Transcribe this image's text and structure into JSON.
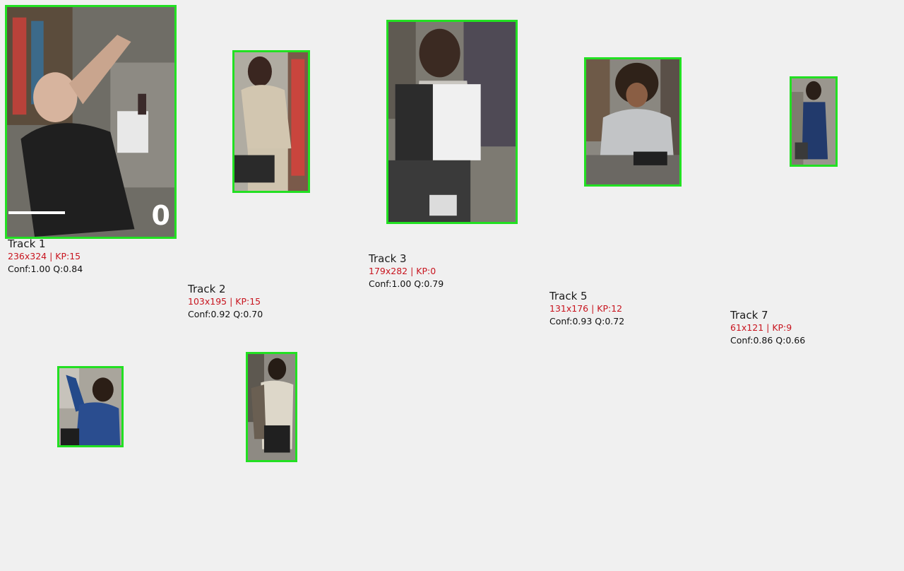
{
  "tracks": [
    {
      "id": "track-1",
      "title": "Track 1",
      "dims": "236x324 | KP:15",
      "conf": "Conf:1.00 Q:0.84",
      "overlay_number": "0"
    },
    {
      "id": "track-2",
      "title": "Track 2",
      "dims": "103x195 | KP:15",
      "conf": "Conf:0.92 Q:0.70"
    },
    {
      "id": "track-3",
      "title": "Track 3",
      "dims": "179x282 | KP:0",
      "conf": "Conf:1.00 Q:0.79"
    },
    {
      "id": "track-5",
      "title": "Track 5",
      "dims": "131x176 | KP:12",
      "conf": "Conf:0.93 Q:0.72"
    },
    {
      "id": "track-7",
      "title": "Track 7",
      "dims": "61x121 | KP:9",
      "conf": "Conf:0.86 Q:0.66"
    }
  ],
  "unlabeled_crops": [
    "crop-a",
    "crop-b"
  ],
  "colors": {
    "box": "#22e022",
    "dims_text": "#c8141e",
    "background": "#f0f0f0"
  }
}
